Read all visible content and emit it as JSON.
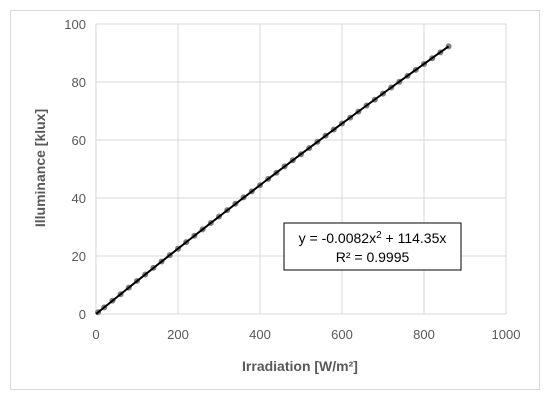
{
  "chart_data": {
    "type": "scatter",
    "xlabel": "Irradiation [W/m²]",
    "ylabel": "Illuminance [klux]",
    "xlim": [
      0,
      1000
    ],
    "ylim": [
      0,
      100
    ],
    "x_ticks": [
      0,
      200,
      400,
      600,
      800,
      1000
    ],
    "y_ticks": [
      0,
      20,
      40,
      60,
      80,
      100
    ],
    "grid": true,
    "marker_color": "#808080",
    "trendline_color": "#000000",
    "series": [
      {
        "x": [
          5,
          20,
          40,
          60,
          80,
          100,
          120,
          140,
          160,
          180,
          200,
          220,
          240,
          260,
          280,
          300,
          320,
          340,
          360,
          380,
          400,
          420,
          440,
          460,
          480,
          500,
          520,
          540,
          560,
          580,
          600,
          620,
          640,
          660,
          680,
          700,
          720,
          740,
          760,
          780,
          800,
          820,
          840,
          860
        ],
        "y": [
          0.6,
          2.3,
          4.6,
          6.8,
          9.1,
          11.4,
          13.6,
          15.9,
          18.1,
          20.3,
          22.5,
          24.8,
          27.0,
          29.2,
          31.4,
          33.6,
          35.8,
          38.0,
          40.2,
          42.3,
          44.4,
          46.6,
          48.7,
          50.9,
          53.0,
          55.1,
          57.2,
          59.4,
          61.5,
          63.6,
          65.7,
          67.7,
          69.8,
          71.9,
          73.9,
          76.0,
          78.1,
          80.1,
          82.1,
          84.2,
          86.2,
          88.2,
          90.2,
          92.3
        ]
      }
    ],
    "trendline": {
      "a": -0.0082,
      "b": 114.35,
      "x_max": 860
    },
    "annotation": {
      "equation_prefix": "y = -0.0082x",
      "equation_sup": "2",
      "equation_suffix": " + 114.35x",
      "r2_label": "R² = 0.9995"
    }
  }
}
